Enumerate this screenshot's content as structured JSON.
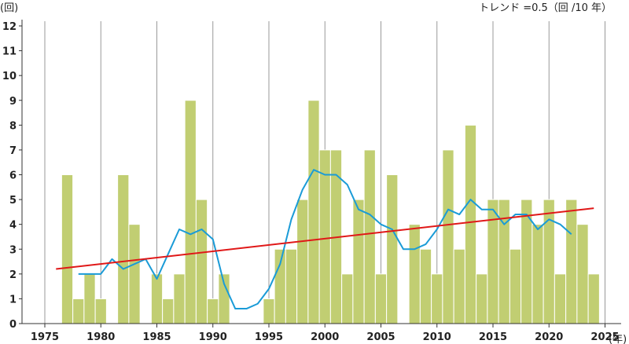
{
  "chart_data": {
    "type": "bar",
    "title": "",
    "ylabel": "(回)",
    "xlabel": "(年)",
    "trend_label": "トレンド =0.5（回 /10 年）",
    "ylim": [
      0,
      12
    ],
    "xlim": [
      1973,
      2026
    ],
    "y_ticks": [
      "0",
      "1",
      "2",
      "3",
      "4",
      "5",
      "6",
      "7",
      "8",
      "9",
      "10",
      "11",
      "12"
    ],
    "x_ticks": [
      "1975",
      "1980",
      "1985",
      "1990",
      "1995",
      "2000",
      "2005",
      "2010",
      "2015",
      "2020",
      "2025"
    ],
    "colors": {
      "bar": "#c1ce72",
      "bar_edge": "#ffffff",
      "moving_average": "#1a9bd7",
      "trend": "#e01818",
      "grid": "#999999"
    },
    "series": [
      {
        "name": "annual_count",
        "x": [
          1976,
          1977,
          1978,
          1979,
          1980,
          1981,
          1982,
          1983,
          1984,
          1985,
          1986,
          1987,
          1988,
          1989,
          1990,
          1991,
          1992,
          1993,
          1994,
          1995,
          1996,
          1997,
          1998,
          1999,
          2000,
          2001,
          2002,
          2003,
          2004,
          2005,
          2006,
          2007,
          2008,
          2009,
          2010,
          2011,
          2012,
          2013,
          2014,
          2015,
          2016,
          2017,
          2018,
          2019,
          2020,
          2021,
          2022,
          2023,
          2024
        ],
        "values": [
          0,
          6,
          1,
          2,
          1,
          0,
          6,
          4,
          0,
          2,
          1,
          2,
          9,
          5,
          1,
          2,
          0,
          0,
          0,
          1,
          3,
          3,
          5,
          9,
          7,
          7,
          2,
          5,
          7,
          2,
          6,
          0,
          4,
          3,
          2,
          7,
          3,
          8,
          2,
          5,
          5,
          3,
          5,
          4,
          5,
          2,
          5,
          4,
          2
        ]
      },
      {
        "name": "moving_average_5yr",
        "x": [
          1978,
          1979,
          1980,
          1981,
          1982,
          1983,
          1984,
          1985,
          1986,
          1987,
          1988,
          1989,
          1990,
          1991,
          1992,
          1993,
          1994,
          1995,
          1996,
          1997,
          1998,
          1999,
          2000,
          2001,
          2002,
          2003,
          2004,
          2005,
          2006,
          2007,
          2008,
          2009,
          2010,
          2011,
          2012,
          2013,
          2014,
          2015,
          2016,
          2017,
          2018,
          2019,
          2020,
          2021,
          2022
        ],
        "values": [
          2.0,
          2.0,
          2.0,
          2.6,
          2.2,
          2.4,
          2.6,
          1.8,
          2.8,
          3.8,
          3.6,
          3.8,
          3.4,
          1.6,
          0.6,
          0.6,
          0.8,
          1.4,
          2.4,
          4.2,
          5.4,
          6.2,
          6.0,
          6.0,
          5.6,
          4.6,
          4.4,
          4.0,
          3.8,
          3.0,
          3.0,
          3.2,
          3.8,
          4.6,
          4.4,
          5.0,
          4.6,
          4.6,
          4.0,
          4.4,
          4.4,
          3.8,
          4.2,
          4.0,
          3.6
        ]
      },
      {
        "name": "trend",
        "x": [
          1976,
          2024
        ],
        "values": [
          2.2,
          4.65
        ]
      }
    ]
  }
}
